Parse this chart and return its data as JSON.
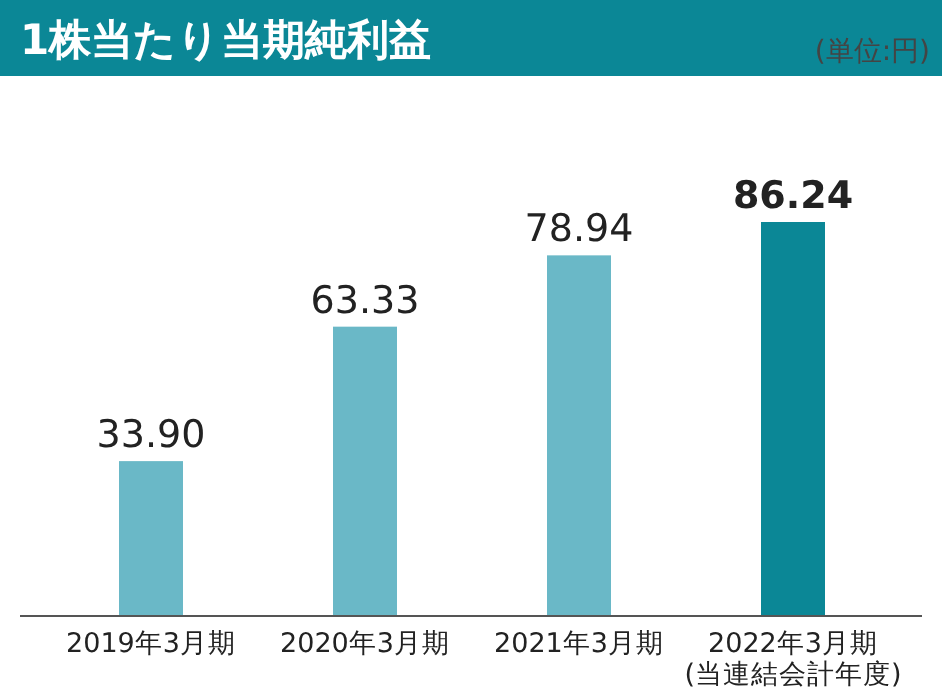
{
  "chart_data": {
    "type": "bar",
    "title": "1株当たり当期純利益",
    "subtitle": "(単位:円)",
    "categories": [
      "2019年3月期",
      "2020年3月期",
      "2021年3月期",
      "2022年3月期\n(当連結会計年度)"
    ],
    "values": [
      33.9,
      63.33,
      78.94,
      86.24
    ],
    "value_labels": [
      "33.90",
      "63.33",
      "78.94",
      "86.24"
    ],
    "colors": [
      "#6ab8c7",
      "#6ab8c7",
      "#6ab8c7",
      "#0b8796"
    ]
  }
}
